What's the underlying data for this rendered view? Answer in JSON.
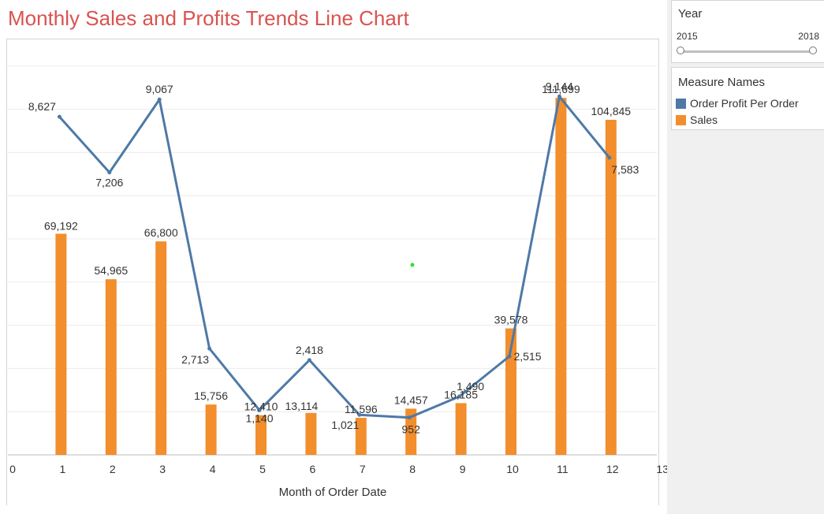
{
  "title": "Monthly Sales and Profits Trends Line Chart",
  "year_filter": {
    "label": "Year",
    "min": "2015",
    "max": "2018"
  },
  "legend": {
    "title": "Measure Names",
    "items": [
      {
        "name": "Order Profit Per Order",
        "color": "#4e79a7"
      },
      {
        "name": "Sales",
        "color": "#f28e2b"
      }
    ]
  },
  "chart_data": {
    "type": "bar",
    "xlabel": "Month of Order Date",
    "x_ticks": [
      0,
      1,
      2,
      3,
      4,
      5,
      6,
      7,
      8,
      9,
      10,
      11,
      12,
      13
    ],
    "xlim": [
      0,
      13
    ],
    "categories": [
      1,
      2,
      3,
      4,
      5,
      6,
      7,
      8,
      9,
      10,
      11,
      12
    ],
    "bar_ylim": [
      0,
      130000
    ],
    "line_ylim": [
      0,
      10600
    ],
    "grid": true,
    "series": [
      {
        "name": "Sales",
        "type": "bar",
        "color": "#f28e2b",
        "values": [
          69192,
          54965,
          66800,
          15756,
          12410,
          13114,
          11596,
          14457,
          16185,
          39578,
          111699,
          104845
        ],
        "labels": [
          "69,192",
          "54,965",
          "66,800",
          "15,756",
          "12,410",
          "13,114",
          "11,596",
          "14,457",
          "16,185",
          "39,578",
          "111,699",
          "104,845"
        ]
      },
      {
        "name": "Order Profit Per Order",
        "type": "line",
        "color": "#4e79a7",
        "values": [
          8627,
          7206,
          9067,
          2713,
          1140,
          2418,
          1021,
          952,
          1490,
          2515,
          9144,
          7583
        ],
        "labels": [
          "8,627",
          "7,206",
          "9,067",
          "2,713",
          "1,140",
          "2,418",
          "1,021",
          "952",
          "1,490",
          "2,515",
          "9,144",
          "7,583"
        ]
      }
    ]
  }
}
